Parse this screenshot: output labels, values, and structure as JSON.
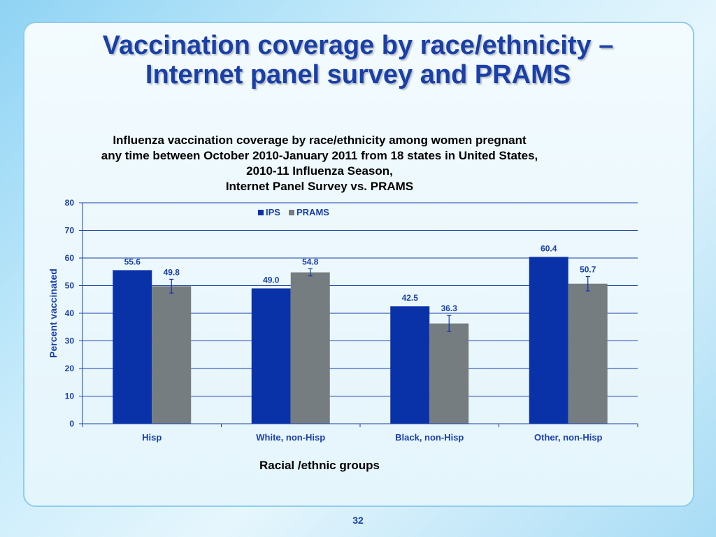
{
  "slide": {
    "title_line1": "Vaccination coverage by race/ethnicity –",
    "title_line2": "Internet panel survey and PRAMS",
    "page_number": "32"
  },
  "colors": {
    "title": "#1a3fa8",
    "ips": "#0a32a8",
    "prams": "#767d81",
    "axis_label": "#1a3fa8"
  },
  "chart_data": {
    "type": "bar",
    "title_lines": [
      "Influenza  vaccination coverage by race/ethnicity among women pregnant",
      "any time between October 2010-January 2011 from 18 states in United States,",
      "2010-11 Influenza Season,",
      "Internet Panel Survey vs. PRAMS"
    ],
    "categories": [
      "Hisp",
      "White, non-Hisp",
      "Black, non-Hisp",
      "Other, non-Hisp"
    ],
    "series": [
      {
        "name": "IPS",
        "values": [
          55.6,
          49.0,
          42.5,
          60.4
        ],
        "labels": [
          "55.6",
          "49.0",
          "42.5",
          "60.4"
        ],
        "error_bars": false
      },
      {
        "name": "PRAMS",
        "values": [
          49.8,
          54.8,
          36.3,
          50.7
        ],
        "labels": [
          "49.8",
          "54.8",
          "36.3",
          "50.7"
        ],
        "error_bars": true,
        "ci_low": [
          47.3,
          53.5,
          33.4,
          48.1
        ],
        "ci_high": [
          52.3,
          56.1,
          39.2,
          53.3
        ]
      }
    ],
    "xlabel": "Racial /ethnic groups",
    "ylabel": "Percent vaccinated",
    "ylim": [
      0,
      80
    ],
    "yticks": [
      0,
      10,
      20,
      30,
      40,
      50,
      60,
      70,
      80
    ],
    "grid": true,
    "legend": "top-center"
  }
}
